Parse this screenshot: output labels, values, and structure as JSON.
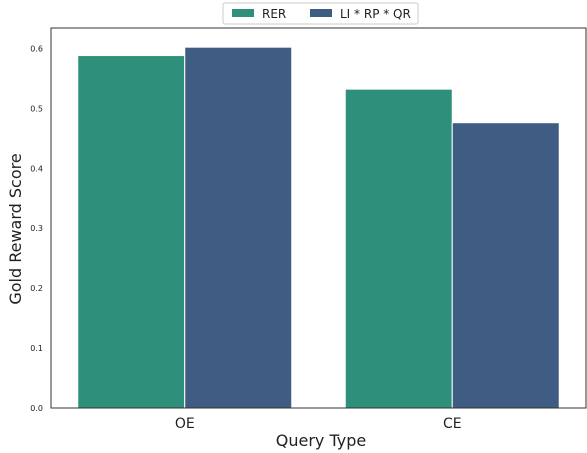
{
  "chart_data": {
    "type": "bar",
    "categories": [
      "OE",
      "CE"
    ],
    "series": [
      {
        "name": "RER",
        "color": "#2e8f7a",
        "values": [
          0.588,
          0.532
        ]
      },
      {
        "name": "LI * RP * QR",
        "color": "#3f5c82",
        "values": [
          0.602,
          0.476
        ]
      }
    ],
    "xlabel": "Query Type",
    "ylabel": "Gold Reward Score",
    "ylim": [
      0,
      0.634
    ],
    "yticks": [
      "0.0",
      "0.1",
      "0.2",
      "0.3",
      "0.4",
      "0.5",
      "0.6"
    ],
    "grid": false,
    "legend_position": "top-center"
  }
}
